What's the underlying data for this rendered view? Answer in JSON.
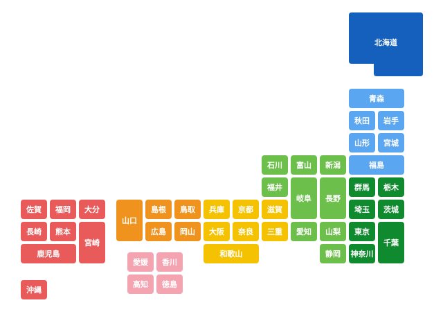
{
  "prefectures": [
    "北海道",
    "青森",
    "秋田",
    "岩手",
    "山形",
    "宮城",
    "福島",
    "石川",
    "富山",
    "新潟",
    "福井",
    "岐阜",
    "長野",
    "群馬",
    "栃木",
    "埼玉",
    "茨城",
    "東京",
    "千葉",
    "神奈川",
    "山梨",
    "静岡",
    "愛知",
    "滋賀",
    "三重",
    "京都",
    "奈良",
    "兵庫",
    "大阪",
    "和歌山",
    "鳥取",
    "岡山",
    "島根",
    "広島",
    "山口",
    "愛媛",
    "香川",
    "高知",
    "徳島",
    "佐賀",
    "福岡",
    "大分",
    "長崎",
    "熊本",
    "宮崎",
    "鹿児島",
    "沖縄"
  ]
}
